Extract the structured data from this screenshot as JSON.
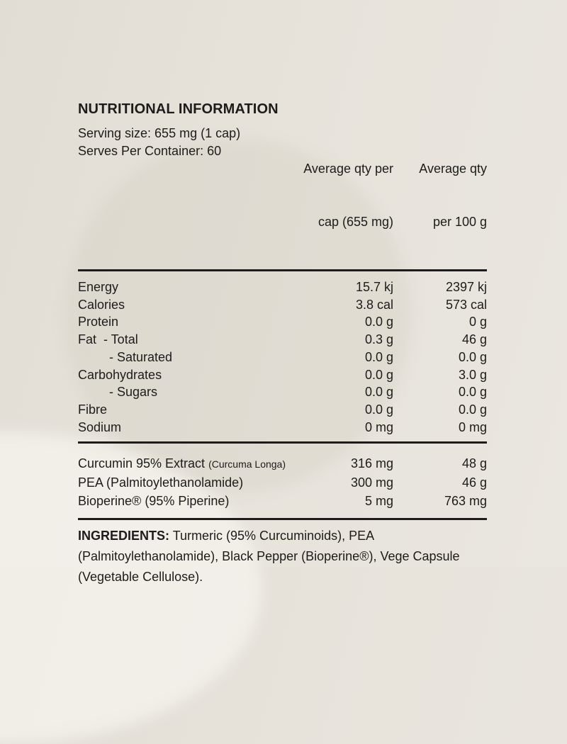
{
  "label": {
    "title": "NUTRITIONAL INFORMATION",
    "serving": {
      "size": "Serving size: 655 mg (1 cap)",
      "per_container": "Serves Per Container: 60"
    },
    "columns": {
      "per_cap_line1": "Average qty per",
      "per_cap_line2": "cap (655 mg)",
      "per_100g_line1": "Average qty",
      "per_100g_line2": "per 100 g"
    },
    "nutrients": [
      {
        "name": "Energy",
        "per_cap": "15.7 kj",
        "per_100g": "2397 kj"
      },
      {
        "name": "Calories",
        "per_cap": "3.8 cal",
        "per_100g": "573 cal"
      },
      {
        "name": "Protein",
        "per_cap": "0.0 g",
        "per_100g": "0 g"
      },
      {
        "name": "Fat  - Total",
        "per_cap": "0.3 g",
        "per_100g": "46 g"
      },
      {
        "name": "- Saturated",
        "per_cap": "0.0 g",
        "per_100g": "0.0 g"
      },
      {
        "name": "Carbohydrates",
        "per_cap": "0.0 g",
        "per_100g": "3.0 g"
      },
      {
        "name": "- Sugars",
        "per_cap": "0.0 g",
        "per_100g": "0.0 g"
      },
      {
        "name": "Fibre",
        "per_cap": "0.0 g",
        "per_100g": "0.0 g"
      },
      {
        "name": "Sodium",
        "per_cap": "0 mg",
        "per_100g": "0 mg"
      }
    ],
    "actives": [
      {
        "name": "Curcumin 95% Extract",
        "name_small": "(Curcuma Longa)",
        "per_cap": "316 mg",
        "per_100g": "48 g"
      },
      {
        "name": "PEA (Palmitoylethanolamide)",
        "name_small": "",
        "per_cap": "300 mg",
        "per_100g": "46 g"
      },
      {
        "name": "Bioperine® (95% Piperine)",
        "name_small": "",
        "per_cap": "5 mg",
        "per_100g": "763 mg"
      }
    ],
    "ingredients": {
      "label": "INGREDIENTS:",
      "line1": "Turmeric (95% Curcuminoids), PEA",
      "line2": "(Palmitoylethanolamide), Black Pepper (Bioperine®), Vege Capsule",
      "line3": "(Vegetable Cellulose)."
    },
    "colors": {
      "background": "#e6e2da",
      "text": "#1d1c1a"
    }
  }
}
